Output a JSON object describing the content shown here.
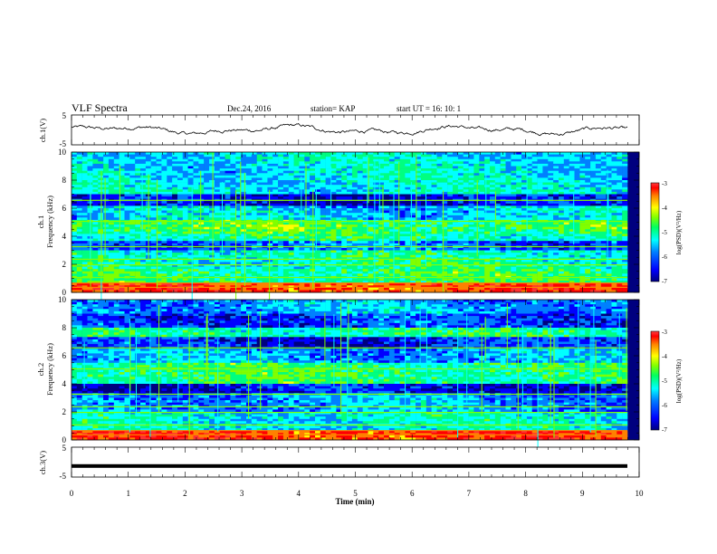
{
  "header": {
    "title": "VLF Spectra",
    "date": "Dec.24, 2016",
    "station": "station= KAP",
    "start": "start  UT =   16: 10: 1"
  },
  "chart_data": [
    {
      "type": "line",
      "panel": "ch1-waveform",
      "ylabel": "ch.1(V)",
      "ylim": [
        -5,
        5
      ],
      "yticks": [
        "5",
        "-5"
      ],
      "xlim": [
        0,
        10
      ],
      "description_values": "noisy trace oscillating roughly between -1.5 and 2 V"
    },
    {
      "type": "heatmap",
      "panel": "ch1-spectrogram",
      "ylabel": [
        "ch.1",
        "Frequency (kHz)"
      ],
      "ylim": [
        0,
        10
      ],
      "yticks": [
        "0",
        "2",
        "4",
        "6",
        "8",
        "10"
      ],
      "xlim": [
        0,
        10
      ],
      "colorbar": {
        "label": "log(PSD)(V²/Hz)",
        "range": [
          -7,
          -3
        ],
        "ticks": [
          "-3",
          "-4",
          "-5",
          "-6",
          "-7"
        ]
      }
    },
    {
      "type": "heatmap",
      "panel": "ch2-spectrogram",
      "ylabel": [
        "ch.2",
        "Frequency (kHz)"
      ],
      "ylim": [
        0,
        10
      ],
      "yticks": [
        "0",
        "2",
        "4",
        "6",
        "8",
        "10"
      ],
      "xlim": [
        0,
        10
      ],
      "colorbar": {
        "label": "log(PSD)(V²/Hz)",
        "range": [
          -7,
          -3
        ],
        "ticks": [
          "-3",
          "-4",
          "-5",
          "-6",
          "-7"
        ]
      }
    },
    {
      "type": "line",
      "panel": "ch3-waveform",
      "ylabel": "ch.3(V)",
      "ylim": [
        -5,
        5
      ],
      "yticks": [
        "5",
        "-5"
      ],
      "xlim": [
        0,
        10
      ],
      "values_constant": -1.3
    }
  ],
  "xaxis": {
    "label": "Time (min)",
    "ticks": [
      "0",
      "1",
      "2",
      "3",
      "4",
      "5",
      "6",
      "7",
      "8",
      "9",
      "10"
    ]
  },
  "colors": {
    "colormap": [
      "#00007f",
      "#0000ff",
      "#0080ff",
      "#00ffff",
      "#00ff80",
      "#80ff00",
      "#ffff00",
      "#ff8000",
      "#ff0000",
      "#ff3030"
    ]
  }
}
